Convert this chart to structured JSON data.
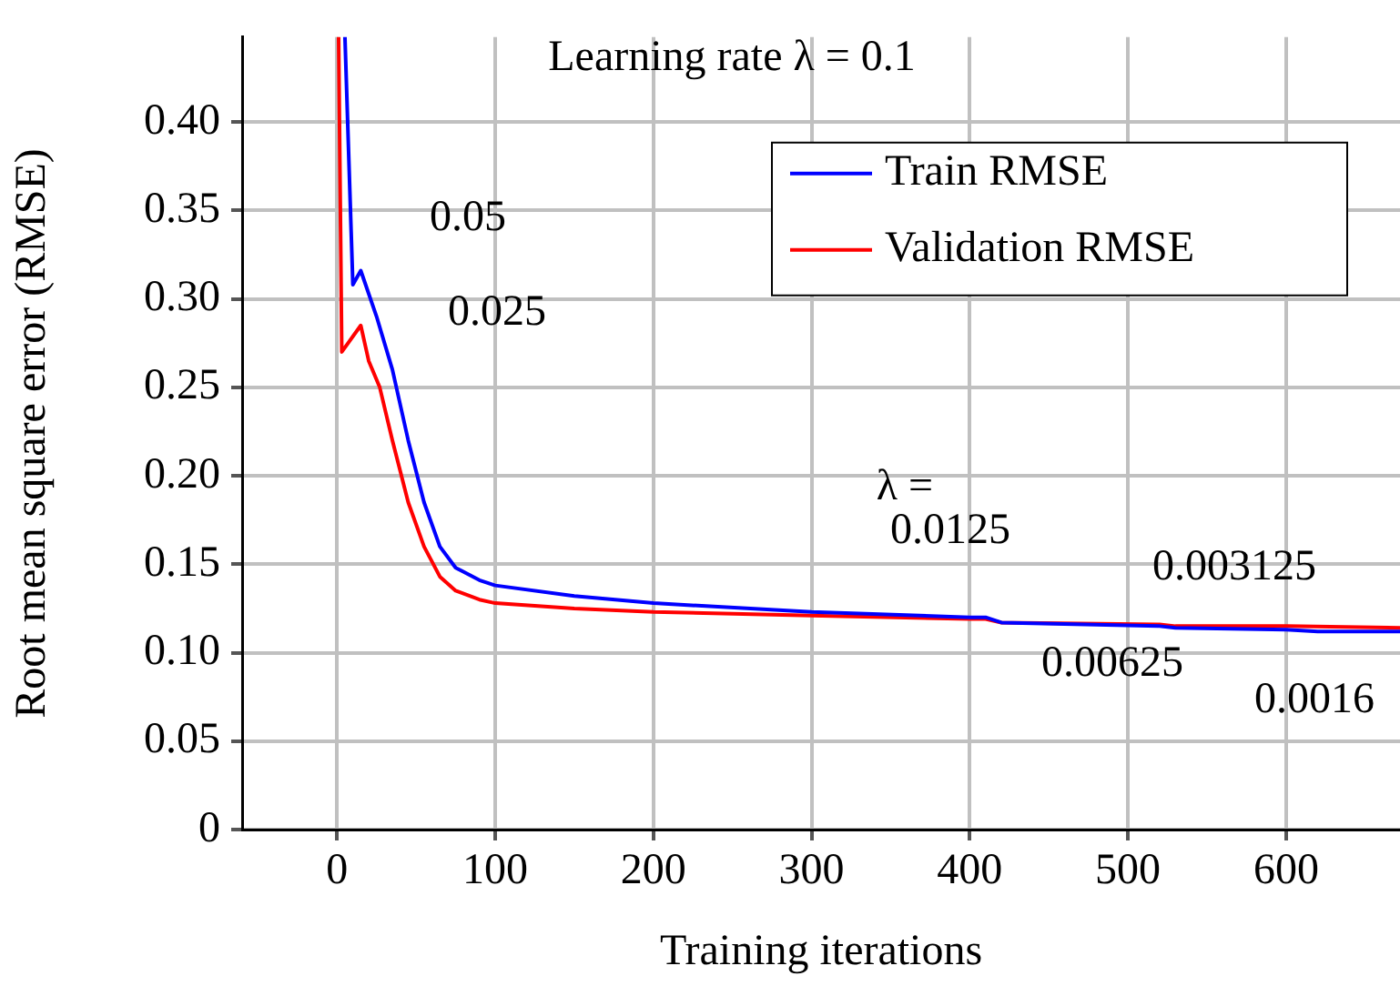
{
  "chart_data": {
    "type": "line",
    "xlabel": "Training iterations",
    "ylabel": "Root mean square error (RMSE)",
    "xlim": [
      -60,
      672
    ],
    "ylim": [
      0,
      0.448
    ],
    "xticks": [
      0,
      100,
      200,
      300,
      400,
      500,
      600
    ],
    "yticks": [
      0,
      0.05,
      {
        "value": 0.1,
        "label": "0.10"
      },
      0.15,
      {
        "value": 0.2,
        "label": "0.20"
      },
      0.25,
      {
        "value": 0.3,
        "label": "0.30"
      },
      0.35,
      {
        "value": 0.4,
        "label": "0.40"
      }
    ],
    "grid": true,
    "legend": "top right",
    "marker": "none",
    "line_style": "solid",
    "series": [
      {
        "name": "Train RMSE",
        "color": "#0000ff",
        "x": [
          5,
          10,
          15,
          25,
          35,
          45,
          55,
          65,
          75,
          90,
          100,
          150,
          200,
          300,
          400,
          410,
          420,
          520,
          530,
          600,
          620,
          672
        ],
        "values": [
          0.448,
          0.308,
          0.316,
          0.29,
          0.26,
          0.22,
          0.185,
          0.16,
          0.148,
          0.141,
          0.138,
          0.132,
          0.128,
          0.123,
          0.12,
          0.12,
          0.117,
          0.115,
          0.114,
          0.113,
          0.112,
          0.112
        ]
      },
      {
        "name": "Validation RMSE",
        "color": "#ff0000",
        "x": [
          1,
          3,
          15,
          20,
          27,
          35,
          45,
          55,
          65,
          75,
          90,
          100,
          150,
          200,
          300,
          400,
          410,
          420,
          520,
          530,
          600,
          672
        ],
        "values": [
          0.448,
          0.27,
          0.285,
          0.265,
          0.25,
          0.22,
          0.185,
          0.16,
          0.143,
          0.135,
          0.13,
          0.128,
          0.125,
          0.123,
          0.121,
          0.119,
          0.119,
          0.117,
          0.116,
          0.115,
          0.115,
          0.114
        ]
      }
    ],
    "annotations": [
      "Learning rate λ = 0.1",
      "0.05",
      "0.025",
      "λ =",
      "0.0125",
      "0.003125",
      "0.00625",
      "0.0016"
    ]
  }
}
